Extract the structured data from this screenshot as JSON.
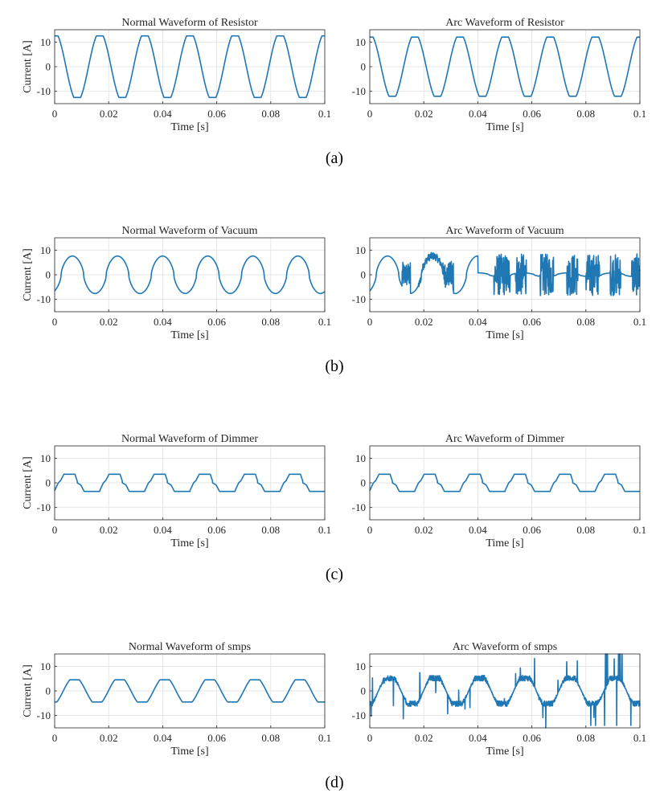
{
  "colors": {
    "line": "#1f77b4",
    "axis": "#262626",
    "grid": "#e6e6e6",
    "background": "#ffffff"
  },
  "captions": [
    "(a)",
    "(b)",
    "(c)",
    "(d)"
  ],
  "chart_data": [
    {
      "type": "line",
      "panel": "resistor-normal",
      "waveform": "sine",
      "amplitude": 12.5,
      "period": 0.0167,
      "phase": 0.25,
      "title": "Normal Waveform of Resistor",
      "xlabel": "Time [s]",
      "ylabel": "Current [A]",
      "xlim": [
        0,
        0.1
      ],
      "ylim": [
        -15,
        15
      ],
      "xticks": [
        0,
        0.02,
        0.04,
        0.06,
        0.08,
        0.1
      ],
      "xticklabels": [
        "0",
        "0.02",
        "0.04",
        "0.06",
        "0.08",
        "0.1"
      ],
      "yticks": [
        10,
        0,
        -10
      ],
      "yticklabels": [
        "10",
        "0",
        "-10"
      ],
      "grid": true
    },
    {
      "type": "line",
      "panel": "resistor-arc",
      "waveform": "sine",
      "amplitude": 12,
      "period": 0.0167,
      "phase": 0.25,
      "title": "Arc Waveform of Resistor",
      "xlabel": "Time [s]",
      "ylabel": "",
      "xlim": [
        0,
        0.1
      ],
      "ylim": [
        -15,
        15
      ],
      "xticks": [
        0,
        0.02,
        0.04,
        0.06,
        0.08,
        0.1
      ],
      "xticklabels": [
        "0",
        "0.02",
        "0.04",
        "0.06",
        "0.08",
        "0.1"
      ],
      "yticks": [
        10,
        0,
        -10
      ],
      "yticklabels": [
        "10",
        "0",
        "-10"
      ],
      "grid": true
    },
    {
      "type": "line",
      "panel": "vacuum-normal",
      "waveform": "vacuum",
      "amplitude": 8,
      "period": 0.0167,
      "phase": 0,
      "title": "Normal Waveform of Vacuum",
      "xlabel": "Time [s]",
      "ylabel": "Current [A]",
      "xlim": [
        0,
        0.1
      ],
      "ylim": [
        -15,
        15
      ],
      "xticks": [
        0,
        0.02,
        0.04,
        0.06,
        0.08,
        0.1
      ],
      "xticklabels": [
        "0",
        "0.02",
        "0.04",
        "0.06",
        "0.08",
        "0.1"
      ],
      "yticks": [
        10,
        0,
        -10
      ],
      "yticklabels": [
        "10",
        "0",
        "-10"
      ],
      "grid": true
    },
    {
      "type": "line",
      "panel": "vacuum-arc",
      "waveform": "vacuum-arc",
      "amplitude": 8,
      "period": 0.0167,
      "phase": 0,
      "title": "Arc Waveform of Vacuum",
      "xlabel": "Time [s]",
      "ylabel": "",
      "xlim": [
        0,
        0.1
      ],
      "ylim": [
        -15,
        15
      ],
      "xticks": [
        0,
        0.02,
        0.04,
        0.06,
        0.08,
        0.1
      ],
      "xticklabels": [
        "0",
        "0.02",
        "0.04",
        "0.06",
        "0.08",
        "0.1"
      ],
      "yticks": [
        10,
        0,
        -10
      ],
      "yticklabels": [
        "10",
        "0",
        "-10"
      ],
      "grid": true
    },
    {
      "type": "line",
      "panel": "dimmer-normal",
      "waveform": "dimmer",
      "amplitude": 3.5,
      "period": 0.0167,
      "phase": 0,
      "title": "Normal Waveform of Dimmer",
      "xlabel": "Time [s]",
      "ylabel": "Current [A]",
      "xlim": [
        0,
        0.1
      ],
      "ylim": [
        -15,
        15
      ],
      "xticks": [
        0,
        0.02,
        0.04,
        0.06,
        0.08,
        0.1
      ],
      "xticklabels": [
        "0",
        "0.02",
        "0.04",
        "0.06",
        "0.08",
        "0.1"
      ],
      "yticks": [
        10,
        0,
        -10
      ],
      "yticklabels": [
        "10",
        "0",
        "-10"
      ],
      "grid": true
    },
    {
      "type": "line",
      "panel": "dimmer-arc",
      "waveform": "dimmer",
      "amplitude": 3.5,
      "period": 0.0167,
      "phase": 0,
      "title": "Arc Waveform of Dimmer",
      "xlabel": "Time [s]",
      "ylabel": "",
      "xlim": [
        0,
        0.1
      ],
      "ylim": [
        -15,
        15
      ],
      "xticks": [
        0,
        0.02,
        0.04,
        0.06,
        0.08,
        0.1
      ],
      "xticklabels": [
        "0",
        "0.02",
        "0.04",
        "0.06",
        "0.08",
        "0.1"
      ],
      "yticks": [
        10,
        0,
        -10
      ],
      "yticklabels": [
        "10",
        "0",
        "-10"
      ],
      "grid": true
    },
    {
      "type": "line",
      "panel": "smps-normal",
      "waveform": "smps",
      "amplitude": 4.5,
      "period": 0.0167,
      "phase": 0,
      "title": "Normal Waveform of smps",
      "xlabel": "Time [s]",
      "ylabel": "Current [A]",
      "xlim": [
        0,
        0.1
      ],
      "ylim": [
        -15,
        15
      ],
      "xticks": [
        0,
        0.02,
        0.04,
        0.06,
        0.08,
        0.1
      ],
      "xticklabels": [
        "0",
        "0.02",
        "0.04",
        "0.06",
        "0.08",
        "0.1"
      ],
      "yticks": [
        10,
        0,
        -10
      ],
      "yticklabels": [
        "10",
        "0",
        "-10"
      ],
      "grid": true
    },
    {
      "type": "line",
      "panel": "smps-arc",
      "waveform": "smps-arc",
      "amplitude": 4.5,
      "period": 0.0167,
      "phase": 0,
      "title": "Arc Waveform of smps",
      "xlabel": "Time [s]",
      "ylabel": "",
      "xlim": [
        0,
        0.1
      ],
      "ylim": [
        -15,
        15
      ],
      "xticks": [
        0,
        0.02,
        0.04,
        0.06,
        0.08,
        0.1
      ],
      "xticklabels": [
        "0",
        "0.02",
        "0.04",
        "0.06",
        "0.08",
        "0.1"
      ],
      "yticks": [
        10,
        0,
        -10
      ],
      "yticklabels": [
        "10",
        "0",
        "-10"
      ],
      "grid": true
    }
  ]
}
